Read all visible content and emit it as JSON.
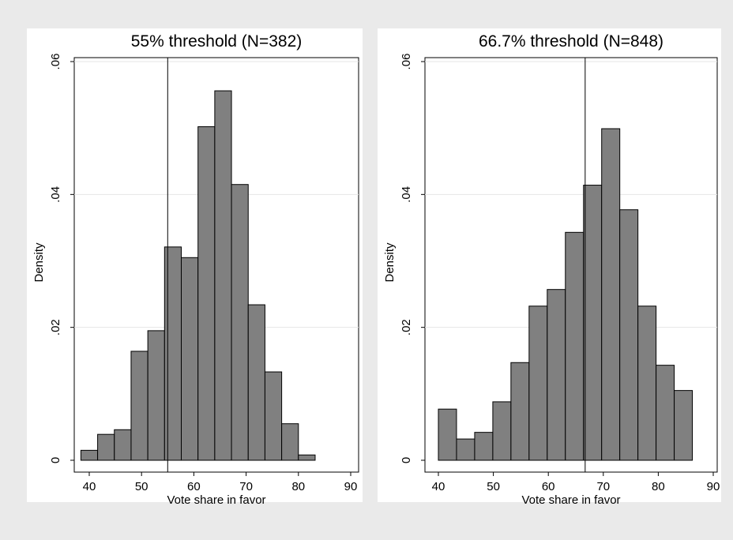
{
  "chart_data": [
    {
      "type": "bar",
      "title": "55% threshold (N=382)",
      "xlabel": "Vote share in favor",
      "ylabel": "Density",
      "xlim": [
        35,
        92
      ],
      "ylim": [
        0,
        0.06
      ],
      "xticks": [
        40,
        50,
        60,
        70,
        80,
        90
      ],
      "xtick_labels": [
        "40",
        "50",
        "60",
        "70",
        "80",
        "90"
      ],
      "yticks": [
        0,
        0.02,
        0.04,
        0.06
      ],
      "ytick_labels": [
        "0",
        ".02",
        ".04",
        ".06"
      ],
      "grid": true,
      "threshold_line": 55,
      "bin_width": 3.2,
      "bin_start": 38.4,
      "values": [
        0.0015,
        0.0039,
        0.0046,
        0.0164,
        0.0195,
        0.0321,
        0.0305,
        0.0502,
        0.0556,
        0.0415,
        0.0234,
        0.0133,
        0.0055,
        0.0008
      ]
    },
    {
      "type": "bar",
      "title": "66.7% threshold (N=848)",
      "xlabel": "Vote share in favor",
      "ylabel": "Density",
      "xlim": [
        35,
        92
      ],
      "ylim": [
        0,
        0.06
      ],
      "xticks": [
        40,
        50,
        60,
        70,
        80,
        90
      ],
      "xtick_labels": [
        "40",
        "50",
        "60",
        "70",
        "80",
        "90"
      ],
      "yticks": [
        0,
        0.02,
        0.04,
        0.06
      ],
      "ytick_labels": [
        "0",
        ".02",
        ".04",
        ".06"
      ],
      "grid": true,
      "threshold_line": 66.7,
      "bin_width": 3.3,
      "bin_start": 40.0,
      "values": [
        0.0077,
        0.0032,
        0.0042,
        0.0088,
        0.0147,
        0.0232,
        0.0257,
        0.0343,
        0.0414,
        0.0499,
        0.0377,
        0.0232,
        0.0143,
        0.0105
      ]
    }
  ]
}
